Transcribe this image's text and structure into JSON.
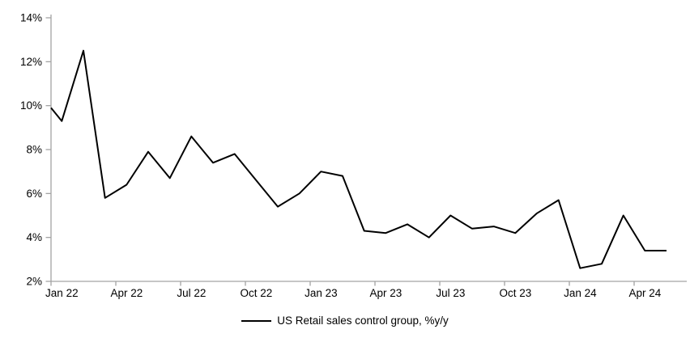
{
  "chart_data": {
    "type": "line",
    "title": "",
    "xlabel": "",
    "ylabel": "",
    "ylim": [
      2,
      14
    ],
    "grid": false,
    "axis_color": "#a3a3a3",
    "background_color": "#ffffff",
    "x": [
      "Dec 21",
      "Jan 22",
      "Feb 22",
      "Mar 22",
      "Apr 22",
      "May 22",
      "Jun 22",
      "Jul 22",
      "Aug 22",
      "Sep 22",
      "Oct 22",
      "Nov 22",
      "Dec 22",
      "Jan 23",
      "Feb 23",
      "Mar 23",
      "Apr 23",
      "May 23",
      "Jun 23",
      "Jul 23",
      "Aug 23",
      "Sep 23",
      "Oct 23",
      "Nov 23",
      "Dec 23",
      "Jan 24",
      "Feb 24",
      "Mar 24",
      "Apr 24",
      "May 24"
    ],
    "series": [
      {
        "name": "US Retail sales control group, %y/y",
        "color": "#000000",
        "values": [
          9.9,
          9.3,
          12.5,
          5.8,
          6.4,
          7.9,
          6.7,
          8.6,
          7.4,
          7.8,
          6.6,
          5.4,
          6.0,
          7.0,
          6.8,
          4.3,
          4.2,
          4.6,
          4.0,
          5.0,
          4.4,
          4.5,
          4.2,
          5.1,
          5.7,
          2.6,
          2.8,
          5.0,
          3.4,
          3.4
        ]
      }
    ],
    "first_point_drawn_at_axis_edge": true,
    "y_ticks": [
      {
        "value": 14,
        "label": "14%"
      },
      {
        "value": 12,
        "label": "12%"
      },
      {
        "value": 10,
        "label": "10%"
      },
      {
        "value": 8,
        "label": "8%"
      },
      {
        "value": 6,
        "label": "6%"
      },
      {
        "value": 4,
        "label": "4%"
      },
      {
        "value": 2,
        "label": "2%"
      }
    ],
    "x_tick_labels": [
      "Jan 22",
      "Apr 22",
      "Jul 22",
      "Oct 22",
      "Jan 23",
      "Apr 23",
      "Jul 23",
      "Oct 23",
      "Jan 24",
      "Apr 24"
    ],
    "legend": {
      "position": "bottom-center",
      "label": "US Retail sales control group, %y/y"
    }
  }
}
